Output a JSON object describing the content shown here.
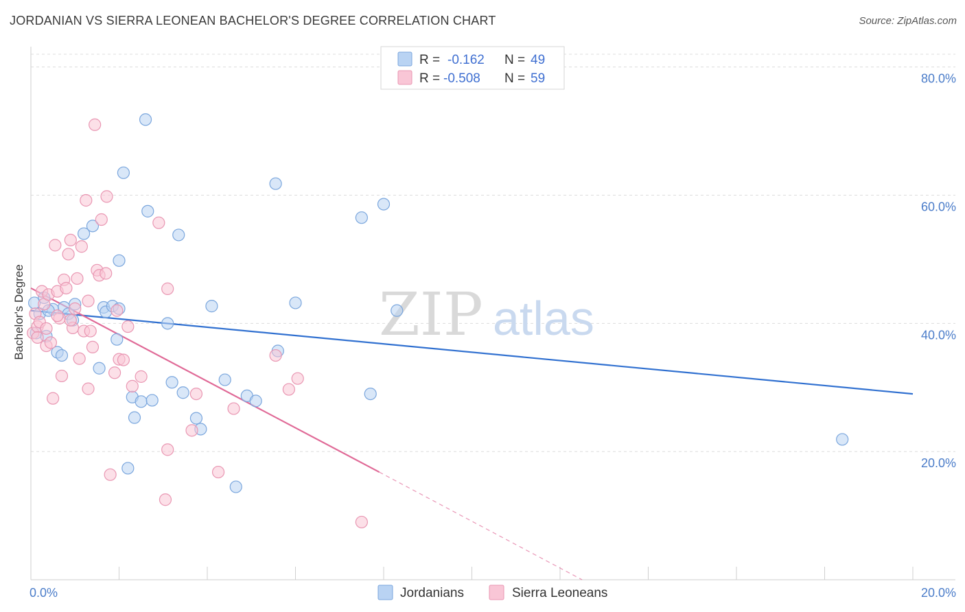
{
  "title": "JORDANIAN VS SIERRA LEONEAN BACHELOR'S DEGREE CORRELATION CHART",
  "source": "Source: ZipAtlas.com",
  "watermark": {
    "zip": "ZIP",
    "atlas": "atlas"
  },
  "colors": {
    "jordanian_fill": "#b9d3f3",
    "jordanian_stroke": "#7aa6dd",
    "jordanian_line": "#3070d0",
    "sierra_fill": "#f9c6d6",
    "sierra_stroke": "#e996b2",
    "sierra_line": "#e06a97",
    "grid": "#dcdcdc",
    "axis_text": "#4a7cc9"
  },
  "legend": {
    "rows": [
      {
        "r_label": "R = ",
        "r_value": "-0.162",
        "n_label": "N = ",
        "n_value": "49"
      },
      {
        "r_label": "R = ",
        "r_value": "-0.508",
        "n_label": "N = ",
        "n_value": "59"
      }
    ]
  },
  "chart_data": {
    "type": "scatter",
    "title": "JORDANIAN VS SIERRA LEONEAN BACHELOR'S DEGREE CORRELATION CHART",
    "xlabel": "",
    "ylabel": "Bachelor's Degree",
    "xlim": [
      0,
      20
    ],
    "ylim": [
      0,
      82
    ],
    "x_ticks": [
      0,
      20
    ],
    "x_tick_labels": [
      "0.0%",
      "20.0%"
    ],
    "y_ticks": [
      20,
      40,
      60,
      80
    ],
    "y_tick_labels": [
      "20.0%",
      "40.0%",
      "60.0%",
      "80.0%"
    ],
    "grid": true,
    "legend_position": "top-center",
    "series": [
      {
        "name": "Jordanians",
        "r": -0.162,
        "n": 49,
        "trend": {
          "x": [
            0,
            20
          ],
          "y": [
            42.0,
            29.0
          ],
          "dashed_from_x": null
        },
        "points": [
          [
            0.08,
            43.2
          ],
          [
            0.12,
            38.5
          ],
          [
            0.2,
            41.5
          ],
          [
            0.3,
            44.0
          ],
          [
            0.35,
            38.0
          ],
          [
            0.5,
            42.2
          ],
          [
            0.6,
            35.5
          ],
          [
            0.7,
            35.0
          ],
          [
            0.75,
            42.5
          ],
          [
            0.85,
            41.5
          ],
          [
            0.95,
            40.5
          ],
          [
            1.2,
            54.0
          ],
          [
            1.4,
            55.2
          ],
          [
            1.55,
            33.0
          ],
          [
            1.65,
            42.5
          ],
          [
            1.7,
            41.8
          ],
          [
            1.85,
            42.7
          ],
          [
            1.95,
            37.5
          ],
          [
            2.0,
            49.8
          ],
          [
            2.1,
            63.5
          ],
          [
            2.2,
            17.4
          ],
          [
            2.3,
            28.5
          ],
          [
            2.35,
            25.3
          ],
          [
            2.5,
            27.8
          ],
          [
            2.6,
            71.8
          ],
          [
            2.65,
            57.5
          ],
          [
            2.75,
            28.0
          ],
          [
            3.1,
            40.0
          ],
          [
            3.2,
            30.8
          ],
          [
            3.35,
            53.8
          ],
          [
            3.45,
            29.2
          ],
          [
            3.75,
            25.2
          ],
          [
            3.85,
            23.5
          ],
          [
            4.1,
            42.7
          ],
          [
            4.4,
            31.2
          ],
          [
            4.65,
            14.5
          ],
          [
            4.9,
            28.7
          ],
          [
            5.1,
            27.9
          ],
          [
            5.55,
            61.8
          ],
          [
            5.6,
            35.7
          ],
          [
            6.0,
            43.2
          ],
          [
            7.5,
            56.5
          ],
          [
            7.7,
            29.0
          ],
          [
            8.0,
            58.6
          ],
          [
            8.3,
            42.0
          ],
          [
            18.4,
            21.9
          ],
          [
            0.4,
            42.0
          ],
          [
            1.0,
            43.0
          ],
          [
            2.0,
            42.3
          ]
        ]
      },
      {
        "name": "Sierra Leoneans",
        "r": -0.508,
        "n": 59,
        "trend": {
          "x": [
            0,
            7.9,
            12.5
          ],
          "y": [
            45.5,
            16.8,
            0
          ],
          "dashed_from_x": 7.9
        },
        "points": [
          [
            0.05,
            38.5
          ],
          [
            0.1,
            41.5
          ],
          [
            0.15,
            39.5
          ],
          [
            0.2,
            40.2
          ],
          [
            0.25,
            45.0
          ],
          [
            0.3,
            43.0
          ],
          [
            0.35,
            36.5
          ],
          [
            0.4,
            44.5
          ],
          [
            0.45,
            37.0
          ],
          [
            0.5,
            28.3
          ],
          [
            0.55,
            52.2
          ],
          [
            0.6,
            45.0
          ],
          [
            0.65,
            40.8
          ],
          [
            0.7,
            31.8
          ],
          [
            0.75,
            46.8
          ],
          [
            0.8,
            45.5
          ],
          [
            0.85,
            50.8
          ],
          [
            0.9,
            53.0
          ],
          [
            0.95,
            39.3
          ],
          [
            1.0,
            42.3
          ],
          [
            1.05,
            47.0
          ],
          [
            1.1,
            34.5
          ],
          [
            1.15,
            52.0
          ],
          [
            1.2,
            38.8
          ],
          [
            1.25,
            59.2
          ],
          [
            1.3,
            29.8
          ],
          [
            1.35,
            38.8
          ],
          [
            1.4,
            36.3
          ],
          [
            1.45,
            71.0
          ],
          [
            1.5,
            48.3
          ],
          [
            1.55,
            47.5
          ],
          [
            1.6,
            56.2
          ],
          [
            1.7,
            47.8
          ],
          [
            1.72,
            59.8
          ],
          [
            1.8,
            16.4
          ],
          [
            1.9,
            32.3
          ],
          [
            1.95,
            42.0
          ],
          [
            2.0,
            34.4
          ],
          [
            2.1,
            34.3
          ],
          [
            2.2,
            39.5
          ],
          [
            2.3,
            30.2
          ],
          [
            2.5,
            31.7
          ],
          [
            2.9,
            55.7
          ],
          [
            3.05,
            12.5
          ],
          [
            3.1,
            20.3
          ],
          [
            3.1,
            45.4
          ],
          [
            3.65,
            23.3
          ],
          [
            3.75,
            29.0
          ],
          [
            4.25,
            16.8
          ],
          [
            4.6,
            26.7
          ],
          [
            5.55,
            35.0
          ],
          [
            5.85,
            29.7
          ],
          [
            6.05,
            31.4
          ],
          [
            7.5,
            9.0
          ],
          [
            0.9,
            40.5
          ],
          [
            0.6,
            41.2
          ],
          [
            0.35,
            39.2
          ],
          [
            1.3,
            43.5
          ],
          [
            0.15,
            37.8
          ]
        ]
      }
    ]
  },
  "bottom_legend": [
    {
      "label": "Jordanians"
    },
    {
      "label": "Sierra Leoneans"
    }
  ]
}
